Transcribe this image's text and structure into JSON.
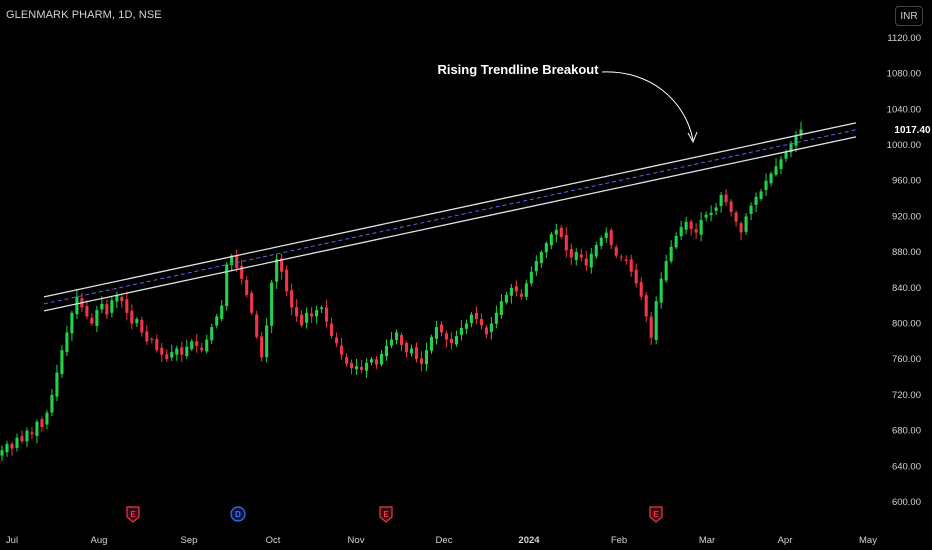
{
  "header": {
    "ticker": "GLENMARK PHARM, 1D, NSE",
    "currency": "INR"
  },
  "colors": {
    "up": "#089981",
    "up_bright": "#22d34a",
    "down": "#f23645",
    "background": "#000000",
    "axis_text": "#d1d4dc",
    "channel_line": "#e0e3eb",
    "channel_mid": "#5b63f5"
  },
  "chart_data": {
    "type": "candlestick",
    "title": "GLENMARK PHARM, 1D, NSE",
    "currency": "INR",
    "last_price": "1017.40",
    "y_ticks": [
      "1120.00",
      "1080.00",
      "1040.00",
      "1000.00",
      "960.00",
      "920.00",
      "880.00",
      "840.00",
      "800.00",
      "760.00",
      "720.00",
      "680.00",
      "640.00",
      "600.00"
    ],
    "x_ticks": [
      "Jul",
      "Aug",
      "Sep",
      "Oct",
      "Nov",
      "Dec",
      "2024",
      "Feb",
      "Mar",
      "Apr",
      "May"
    ],
    "ylim": [
      580,
      1140
    ],
    "annotation": "Rising  Trendline Breakout",
    "trendline": {
      "start": {
        "date": "2023-07-27",
        "price": 830
      },
      "end": {
        "date": "2024-04-10",
        "price": 1023
      }
    },
    "events": [
      {
        "label": "E",
        "kind": "earnings",
        "near": "Aug"
      },
      {
        "label": "D",
        "kind": "dividend",
        "near": "Sep"
      },
      {
        "label": "E",
        "kind": "earnings",
        "near": "Nov"
      },
      {
        "label": "E",
        "kind": "earnings",
        "near": "Feb"
      }
    ],
    "closes": [
      658,
      665,
      660,
      672,
      668,
      680,
      676,
      690,
      684,
      700,
      720,
      745,
      770,
      790,
      812,
      830,
      818,
      808,
      800,
      815,
      822,
      810,
      826,
      832,
      825,
      812,
      800,
      805,
      790,
      780,
      782,
      770,
      765,
      760,
      768,
      772,
      765,
      774,
      780,
      775,
      770,
      782,
      796,
      808,
      820,
      866,
      876,
      862,
      850,
      832,
      812,
      785,
      762,
      798,
      846,
      872,
      858,
      836,
      818,
      808,
      798,
      812,
      808,
      815,
      818,
      802,
      786,
      778,
      765,
      755,
      750,
      752,
      748,
      756,
      760,
      754,
      766,
      775,
      782,
      790,
      776,
      768,
      772,
      760,
      755,
      770,
      785,
      796,
      790,
      782,
      778,
      786,
      795,
      800,
      810,
      805,
      798,
      788,
      800,
      812,
      825,
      832,
      840,
      836,
      830,
      845,
      858,
      870,
      880,
      890,
      900,
      905,
      897,
      882,
      874,
      880,
      874,
      865,
      878,
      888,
      896,
      902,
      888,
      876,
      874,
      870,
      858,
      845,
      830,
      808,
      784,
      825,
      850,
      870,
      886,
      898,
      908,
      914,
      906,
      902,
      916,
      922,
      924,
      930,
      944,
      936,
      925,
      914,
      902,
      920,
      932,
      942,
      948,
      960,
      968,
      976,
      984,
      992,
      1002,
      1010,
      1017.4
    ]
  }
}
